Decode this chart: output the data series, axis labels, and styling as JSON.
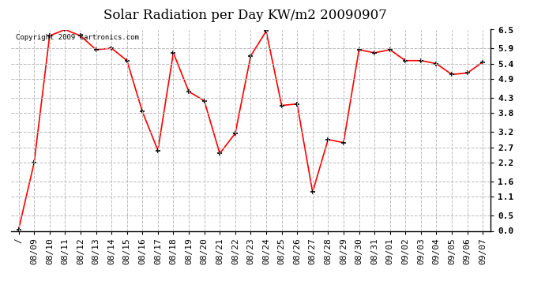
{
  "title": "Solar Radiation per Day KW/m2 20090907",
  "copyright_text": "Copyright 2009 Cartronics.com",
  "x_labels": [
    "/",
    "08/09",
    "08/10",
    "08/11",
    "08/12",
    "08/13",
    "08/14",
    "08/15",
    "08/16",
    "08/17",
    "08/18",
    "08/19",
    "08/20",
    "08/21",
    "08/22",
    "08/23",
    "08/24",
    "08/25",
    "08/26",
    "08/27",
    "08/28",
    "08/29",
    "08/30",
    "08/31",
    "09/01",
    "09/02",
    "09/03",
    "09/04",
    "09/05",
    "09/06",
    "09/07"
  ],
  "y_values": [
    0.05,
    2.2,
    6.3,
    6.5,
    6.3,
    5.85,
    5.9,
    5.5,
    3.85,
    2.6,
    5.75,
    4.5,
    4.2,
    2.5,
    3.15,
    5.65,
    6.45,
    4.05,
    4.1,
    1.25,
    2.95,
    2.85,
    5.85,
    5.75,
    5.85,
    5.5,
    5.5,
    5.4,
    5.05,
    5.1,
    5.45
  ],
  "line_color": "red",
  "marker": "+",
  "marker_color": "black",
  "background_color": "white",
  "grid_color": "#bbbbbb",
  "y_ticks": [
    0.0,
    0.5,
    1.1,
    1.6,
    2.2,
    2.7,
    3.2,
    3.8,
    4.3,
    4.9,
    5.4,
    5.9,
    6.5
  ],
  "ylim": [
    0.0,
    6.5
  ],
  "title_fontsize": 12,
  "tick_fontsize": 8
}
